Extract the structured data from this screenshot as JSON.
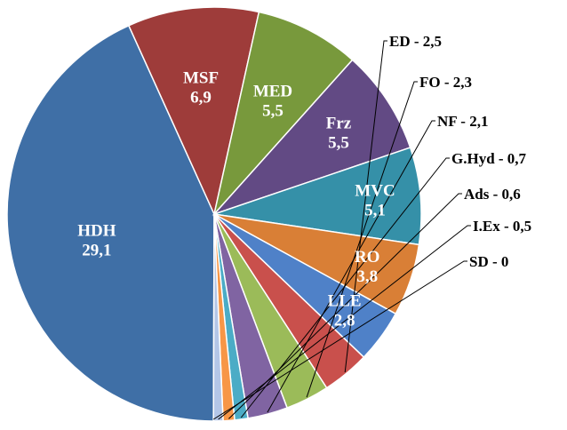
{
  "chart_data": {
    "type": "pie",
    "title": "",
    "legend": "none",
    "slices": [
      {
        "label": "HDH",
        "value": 29.1,
        "value_text": "29,1",
        "color": "#3f6fa6",
        "label_style": "inside"
      },
      {
        "label": "MSF",
        "value": 6.9,
        "value_text": "6,9",
        "color": "#9e3c3a",
        "label_style": "inside"
      },
      {
        "label": "MED",
        "value": 5.5,
        "value_text": "5,5",
        "color": "#78993c",
        "label_style": "inside"
      },
      {
        "label": "Frz",
        "value": 5.5,
        "value_text": "5,5",
        "color": "#624a84",
        "label_style": "inside"
      },
      {
        "label": "MVC",
        "value": 5.1,
        "value_text": "5,1",
        "color": "#3590a8",
        "label_style": "inside"
      },
      {
        "label": "RO",
        "value": 3.8,
        "value_text": "3,8",
        "color": "#d97f36",
        "label_style": "inside"
      },
      {
        "label": "LLE",
        "value": 2.8,
        "value_text": "2,8",
        "color": "#4f81c8",
        "label_style": "inside"
      },
      {
        "label": "ED",
        "value": 2.5,
        "value_text": "2,5",
        "color": "#c9504c",
        "label_style": "outside",
        "text": "ED - 2,5"
      },
      {
        "label": "FO",
        "value": 2.3,
        "value_text": "2,3",
        "color": "#9bbb59",
        "label_style": "outside",
        "text": "FO - 2,3"
      },
      {
        "label": "NF",
        "value": 2.1,
        "value_text": "2,1",
        "color": "#8064a2",
        "label_style": "outside",
        "text": "NF - 2,1"
      },
      {
        "label": "G.Hyd",
        "value": 0.7,
        "value_text": "0,7",
        "color": "#4bacc6",
        "label_style": "outside",
        "text": "G.Hyd - 0,7"
      },
      {
        "label": "Ads",
        "value": 0.6,
        "value_text": "0,6",
        "color": "#f79646",
        "label_style": "outside",
        "text": "Ads - 0,6"
      },
      {
        "label": "I.Ex",
        "value": 0.5,
        "value_text": "0,5",
        "color": "#b3c6e7",
        "label_style": "outside",
        "text": "I.Ex - 0,5"
      },
      {
        "label": "SD",
        "value": 0.0,
        "value_text": "0",
        "color": "#d99694",
        "label_style": "outside",
        "text": "SD - 0"
      }
    ]
  }
}
